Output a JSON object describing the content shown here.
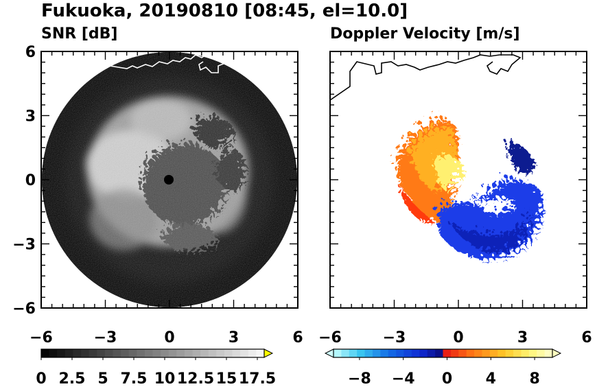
{
  "figure": {
    "title": "Fukuoka, 20190810 [08:45, el=10.0]"
  },
  "chart_data": [
    {
      "type": "heatmap",
      "title": "SNR [dB]",
      "xlim": [
        -6,
        6
      ],
      "ylim": [
        -6,
        6
      ],
      "x_ticks": [
        -6,
        -3,
        0,
        3,
        6
      ],
      "y_ticks": [
        6,
        3,
        0,
        -3,
        -6
      ],
      "x_tick_labels": [
        "−6",
        "−3",
        "0",
        "3",
        "6"
      ],
      "y_tick_labels": [
        "6",
        "3",
        "0",
        "−3",
        "−6"
      ],
      "grid": false,
      "colormap": "grayscale",
      "colors": {
        "low": "#000000",
        "high": "#ffffff",
        "extend": "#ffff00"
      },
      "colorbar": {
        "range": [
          0,
          17.5
        ],
        "ticks": [
          0,
          2.5,
          5,
          7.5,
          10,
          12.5,
          15,
          17.5
        ],
        "tick_labels": [
          "0",
          "2.5",
          "5",
          "7.5",
          "10",
          "12.5",
          "15",
          "17.5"
        ],
        "extend": "max"
      },
      "data_coverage_radius": 6
    },
    {
      "type": "heatmap",
      "title": "Doppler Velocity [m/s]",
      "xlim": [
        -6,
        6
      ],
      "ylim": [
        -6,
        6
      ],
      "x_ticks": [
        -6,
        -3,
        0,
        3,
        6
      ],
      "x_tick_labels": [
        "−6",
        "−3",
        "0",
        "3",
        "6"
      ],
      "grid": false,
      "colormap": "diverging",
      "colors": {
        "negative": "#1030e0",
        "positive": "#ff6010",
        "extend_low": "#cfffff",
        "extend_high": "#ffffc0"
      },
      "colorbar": {
        "range": [
          -10,
          10
        ],
        "ticks": [
          -8,
          -4,
          0,
          4,
          8
        ],
        "tick_labels": [
          "−8",
          "−4",
          "0",
          "4",
          "8"
        ],
        "extend": "both"
      }
    }
  ]
}
